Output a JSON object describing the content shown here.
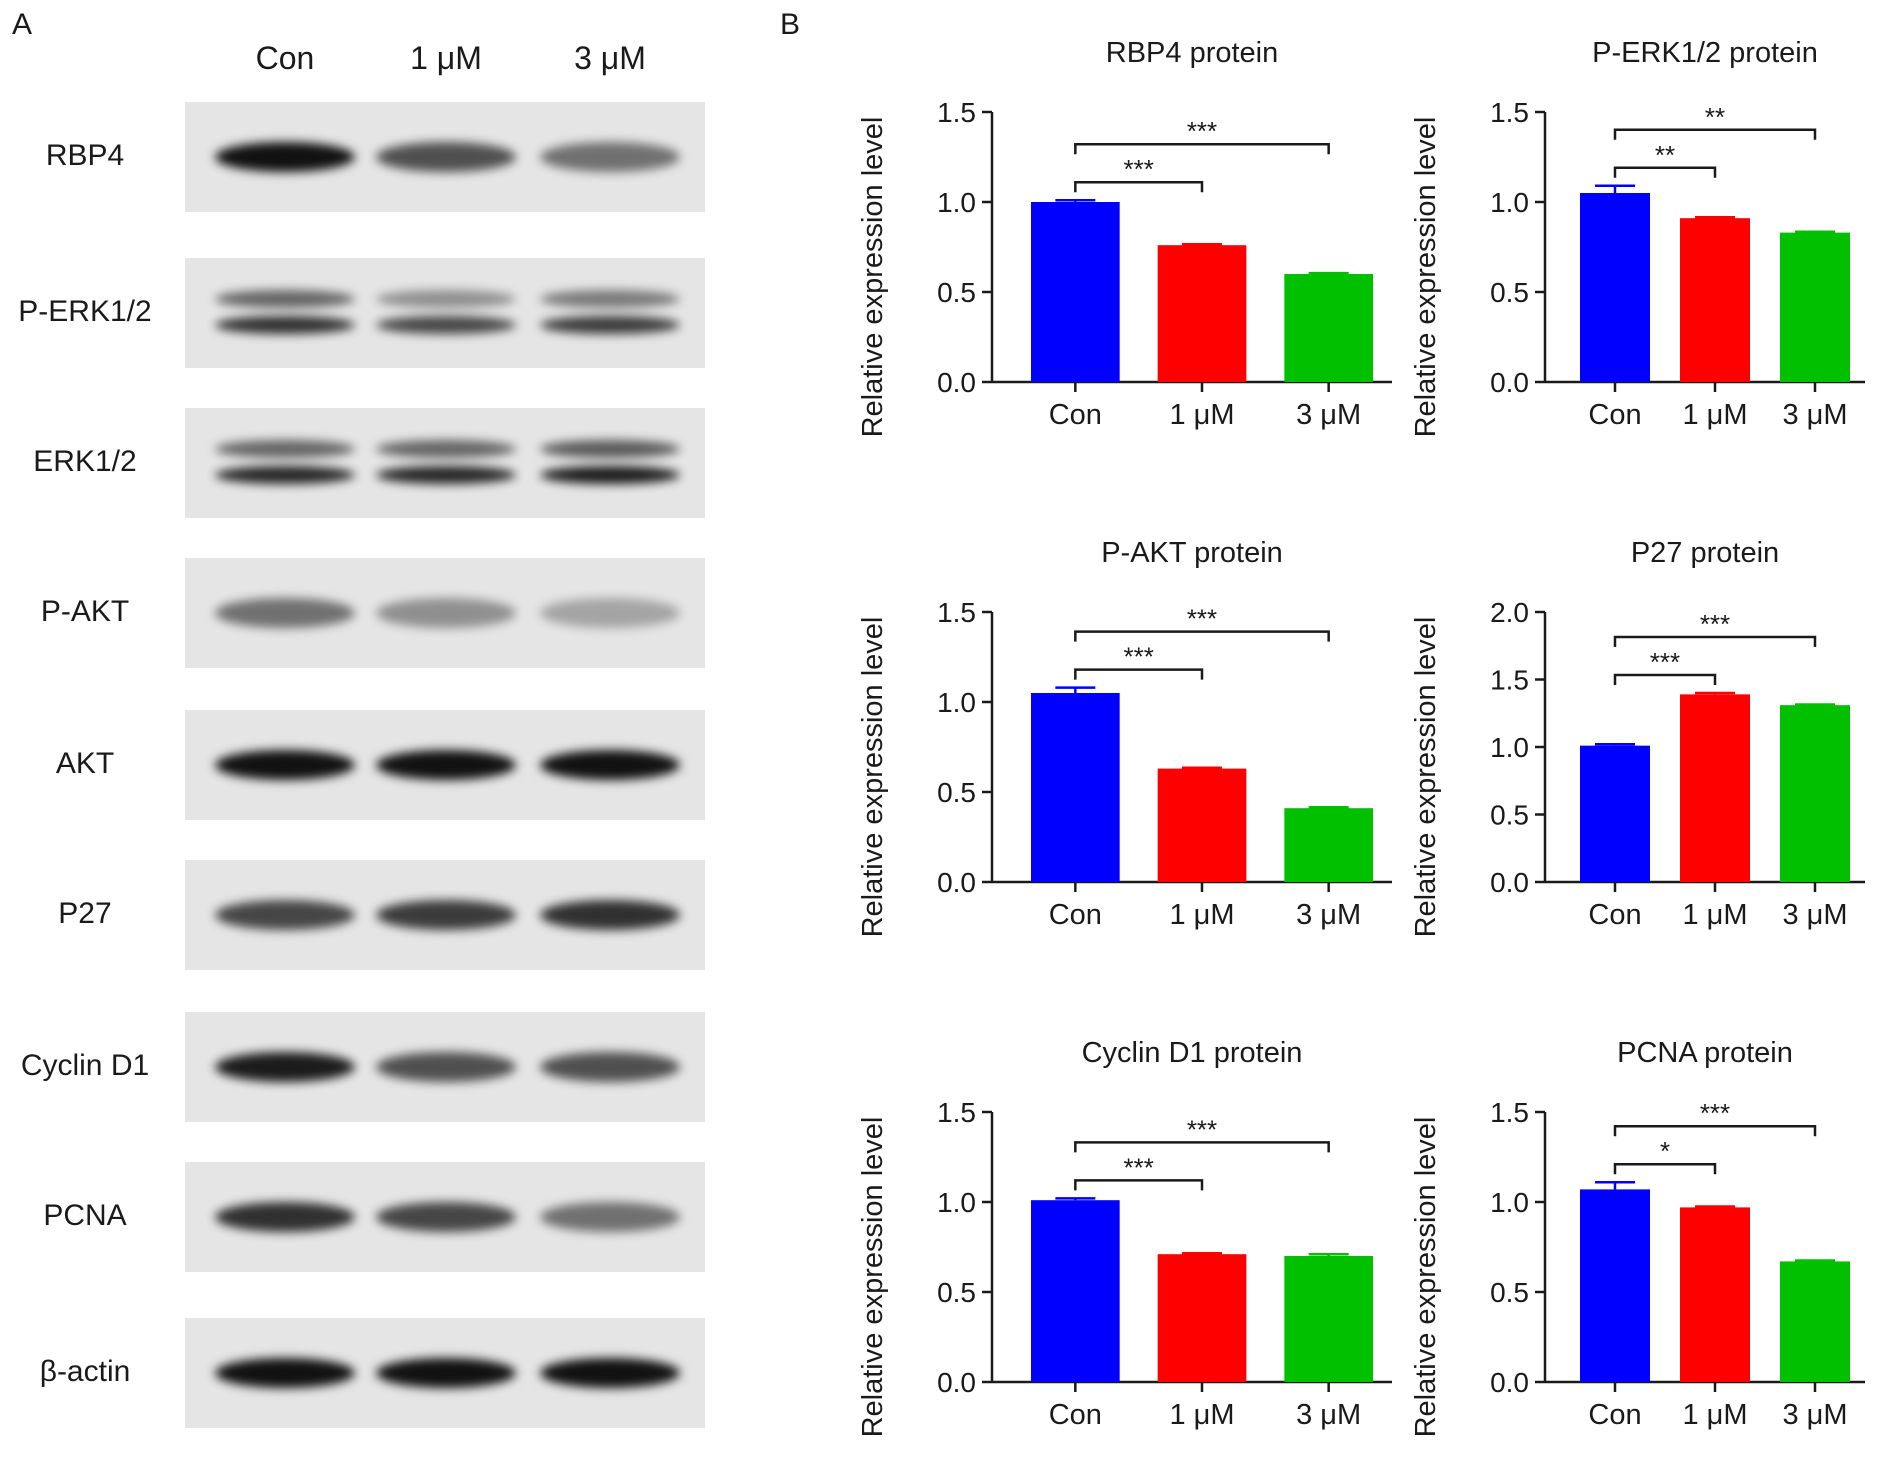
{
  "panel_a": {
    "letter": "A",
    "lanes": [
      "Con",
      "1 μM",
      "3 μM"
    ],
    "blots": [
      {
        "label": "RBP4",
        "bands": [
          [
            1.0
          ],
          [
            0.7
          ],
          [
            0.55
          ]
        ]
      },
      {
        "label": "P-ERK1/2",
        "bands": [
          [
            0.6,
            0.85
          ],
          [
            0.4,
            0.75
          ],
          [
            0.5,
            0.8
          ]
        ]
      },
      {
        "label": "ERK1/2",
        "bands": [
          [
            0.6,
            0.9
          ],
          [
            0.6,
            0.9
          ],
          [
            0.65,
            0.95
          ]
        ]
      },
      {
        "label": "P-AKT",
        "bands": [
          [
            0.55
          ],
          [
            0.4
          ],
          [
            0.3
          ]
        ]
      },
      {
        "label": "AKT",
        "bands": [
          [
            1.0
          ],
          [
            1.0
          ],
          [
            1.0
          ]
        ]
      },
      {
        "label": "P27",
        "bands": [
          [
            0.75
          ],
          [
            0.8
          ],
          [
            0.85
          ]
        ]
      },
      {
        "label": "Cyclin D1",
        "bands": [
          [
            0.95
          ],
          [
            0.7
          ],
          [
            0.7
          ]
        ]
      },
      {
        "label": "PCNA",
        "bands": [
          [
            0.85
          ],
          [
            0.75
          ],
          [
            0.55
          ]
        ]
      },
      {
        "label": "β-actin",
        "bands": [
          [
            1.0
          ],
          [
            1.0
          ],
          [
            1.0
          ]
        ]
      }
    ]
  },
  "panel_b": {
    "letter": "B"
  },
  "chart_data": [
    {
      "type": "bar",
      "title": "RBP4 protein",
      "ylabel": "Relative expression level",
      "categories": [
        "Con",
        "1 μM",
        "3 μM"
      ],
      "values": [
        1.0,
        0.76,
        0.6
      ],
      "errors": [
        0.01,
        0.005,
        0.005
      ],
      "ylim": [
        0,
        1.5
      ],
      "yticks": [
        "0.0",
        "0.5",
        "1.0",
        "1.5"
      ],
      "colors": [
        "#0000ff",
        "#ff0000",
        "#00c000"
      ],
      "significance": [
        {
          "from": 0,
          "to": 1,
          "label": "***"
        },
        {
          "from": 0,
          "to": 2,
          "label": "***"
        }
      ]
    },
    {
      "type": "bar",
      "title": "P-ERK1/2 protein",
      "ylabel": "Relative expression level",
      "categories": [
        "Con",
        "1 μM",
        "3 μM"
      ],
      "values": [
        1.05,
        0.91,
        0.83
      ],
      "errors": [
        0.04,
        0.005,
        0.005
      ],
      "ylim": [
        0,
        1.5
      ],
      "yticks": [
        "0.0",
        "0.5",
        "1.0",
        "1.5"
      ],
      "colors": [
        "#0000ff",
        "#ff0000",
        "#00c000"
      ],
      "significance": [
        {
          "from": 0,
          "to": 1,
          "label": "**"
        },
        {
          "from": 0,
          "to": 2,
          "label": "**"
        }
      ]
    },
    {
      "type": "bar",
      "title": "P-AKT protein",
      "ylabel": "Relative expression level",
      "categories": [
        "Con",
        "1 μM",
        "3 μM"
      ],
      "values": [
        1.05,
        0.63,
        0.41
      ],
      "errors": [
        0.03,
        0.005,
        0.005
      ],
      "ylim": [
        0,
        1.5
      ],
      "yticks": [
        "0.0",
        "0.5",
        "1.0",
        "1.5"
      ],
      "colors": [
        "#0000ff",
        "#ff0000",
        "#00c000"
      ],
      "significance": [
        {
          "from": 0,
          "to": 1,
          "label": "***"
        },
        {
          "from": 0,
          "to": 2,
          "label": "***"
        }
      ]
    },
    {
      "type": "bar",
      "title": "P27 protein",
      "ylabel": "Relative expression level",
      "categories": [
        "Con",
        "1 μM",
        "3 μM"
      ],
      "values": [
        1.01,
        1.39,
        1.31
      ],
      "errors": [
        0.01,
        0.01,
        0.005
      ],
      "ylim": [
        0,
        2.0
      ],
      "yticks": [
        "0.0",
        "0.5",
        "1.0",
        "1.5",
        "2.0"
      ],
      "colors": [
        "#0000ff",
        "#ff0000",
        "#00c000"
      ],
      "significance": [
        {
          "from": 0,
          "to": 1,
          "label": "***"
        },
        {
          "from": 0,
          "to": 2,
          "label": "***"
        }
      ]
    },
    {
      "type": "bar",
      "title": "Cyclin D1 protein",
      "ylabel": "Relative expression level",
      "categories": [
        "Con",
        "1 μM",
        "3 μM"
      ],
      "values": [
        1.01,
        0.71,
        0.7
      ],
      "errors": [
        0.01,
        0.005,
        0.01
      ],
      "ylim": [
        0,
        1.5
      ],
      "yticks": [
        "0.0",
        "0.5",
        "1.0",
        "1.5"
      ],
      "colors": [
        "#0000ff",
        "#ff0000",
        "#00c000"
      ],
      "significance": [
        {
          "from": 0,
          "to": 1,
          "label": "***"
        },
        {
          "from": 0,
          "to": 2,
          "label": "***"
        }
      ]
    },
    {
      "type": "bar",
      "title": "PCNA protein",
      "ylabel": "Relative expression level",
      "categories": [
        "Con",
        "1 μM",
        "3 μM"
      ],
      "values": [
        1.07,
        0.97,
        0.67
      ],
      "errors": [
        0.04,
        0.005,
        0.005
      ],
      "ylim": [
        0,
        1.5
      ],
      "yticks": [
        "0.0",
        "0.5",
        "1.0",
        "1.5"
      ],
      "colors": [
        "#0000ff",
        "#ff0000",
        "#00c000"
      ],
      "significance": [
        {
          "from": 0,
          "to": 1,
          "label": "*"
        },
        {
          "from": 0,
          "to": 2,
          "label": "***"
        }
      ]
    }
  ]
}
